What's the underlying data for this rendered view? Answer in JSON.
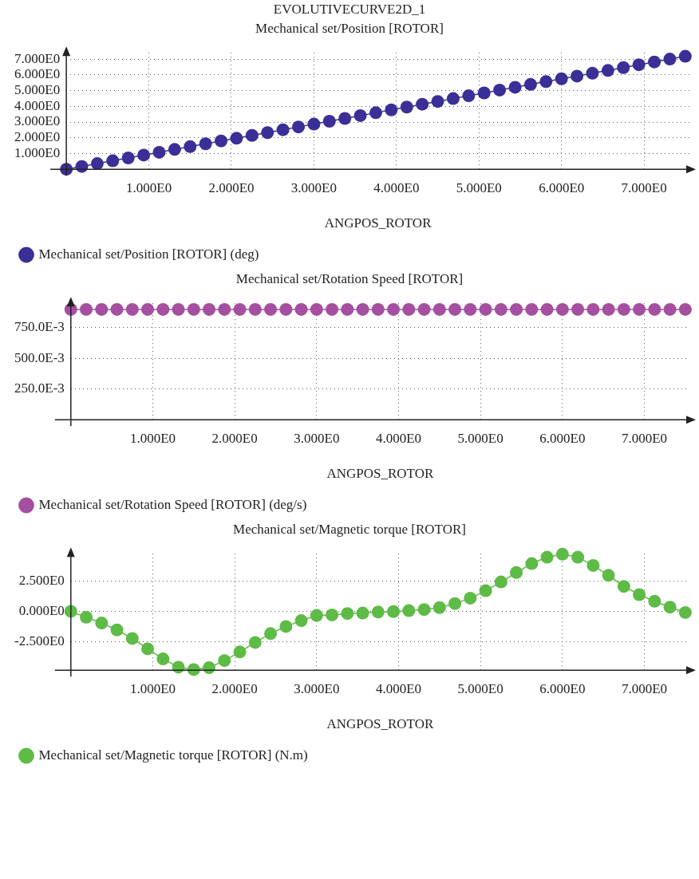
{
  "chart_data": [
    {
      "type": "line",
      "title": "EVOLUTIVECURVE2D_1",
      "subtitle": "Mechanical set/Position [ROTOR]",
      "xlabel": "ANGPOS_ROTOR",
      "x": [
        0,
        0.1875,
        0.375,
        0.5625,
        0.75,
        0.9375,
        1.125,
        1.3125,
        1.5,
        1.6875,
        1.875,
        2.0625,
        2.25,
        2.4375,
        2.625,
        2.8125,
        3,
        3.1875,
        3.375,
        3.5625,
        3.75,
        3.9375,
        4.125,
        4.3125,
        4.5,
        4.6875,
        4.875,
        5.0625,
        5.25,
        5.4375,
        5.625,
        5.8125,
        6,
        6.1875,
        6.375,
        6.5625,
        6.75,
        6.9375,
        7.125,
        7.3125,
        7.5
      ],
      "series": [
        {
          "name": "Mechanical set/Position [ROTOR] (deg)",
          "color": "#3a2f96",
          "values": [
            0,
            0.18,
            0.36,
            0.54,
            0.72,
            0.9,
            1.08,
            1.26,
            1.44,
            1.62,
            1.8,
            1.97,
            2.15,
            2.33,
            2.51,
            2.69,
            2.87,
            3.05,
            3.23,
            3.41,
            3.59,
            3.77,
            3.95,
            4.13,
            4.31,
            4.49,
            4.67,
            4.85,
            5.03,
            5.21,
            5.39,
            5.57,
            5.75,
            5.92,
            6.1,
            6.28,
            6.46,
            6.64,
            6.82,
            7,
            7.18
          ]
        }
      ],
      "xlim": [
        0,
        7.55
      ],
      "xticks": [
        {
          "value": 1,
          "label": "1.000E0"
        },
        {
          "value": 2,
          "label": "2.000E0"
        },
        {
          "value": 3,
          "label": "3.000E0"
        },
        {
          "value": 4,
          "label": "4.000E0"
        },
        {
          "value": 5,
          "label": "5.000E0"
        },
        {
          "value": 6,
          "label": "6.000E0"
        },
        {
          "value": 7,
          "label": "7.000E0"
        }
      ],
      "ylim": [
        0,
        7.4
      ],
      "yticks": [
        {
          "value": 1,
          "label": "1.000E0"
        },
        {
          "value": 2,
          "label": "2.000E0"
        },
        {
          "value": 3,
          "label": "3.000E0"
        },
        {
          "value": 4,
          "label": "4.000E0"
        },
        {
          "value": 5,
          "label": "5.000E0"
        },
        {
          "value": 6,
          "label": "6.000E0"
        },
        {
          "value": 7,
          "label": "7.000E0"
        }
      ],
      "grid": true,
      "legend": "bottom left",
      "marker": "circle",
      "line_style": "solid"
    },
    {
      "type": "line",
      "title": "Mechanical set/Rotation Speed [ROTOR]",
      "xlabel": "ANGPOS_ROTOR",
      "x": [
        0,
        0.1875,
        0.375,
        0.5625,
        0.75,
        0.9375,
        1.125,
        1.3125,
        1.5,
        1.6875,
        1.875,
        2.0625,
        2.25,
        2.4375,
        2.625,
        2.8125,
        3,
        3.1875,
        3.375,
        3.5625,
        3.75,
        3.9375,
        4.125,
        4.3125,
        4.5,
        4.6875,
        4.875,
        5.0625,
        5.25,
        5.4375,
        5.625,
        5.8125,
        6,
        6.1875,
        6.375,
        6.5625,
        6.75,
        6.9375,
        7.125,
        7.3125,
        7.5
      ],
      "series": [
        {
          "name": "Mechanical set/Rotation Speed [ROTOR] (deg/s)",
          "color": "#a54fa0",
          "values": [
            0.9,
            0.9,
            0.9,
            0.9,
            0.9,
            0.9,
            0.9,
            0.9,
            0.9,
            0.9,
            0.9,
            0.9,
            0.9,
            0.9,
            0.9,
            0.9,
            0.9,
            0.9,
            0.9,
            0.9,
            0.9,
            0.9,
            0.9,
            0.9,
            0.9,
            0.9,
            0.9,
            0.9,
            0.9,
            0.9,
            0.9,
            0.9,
            0.9,
            0.9,
            0.9,
            0.9,
            0.9,
            0.9,
            0.9,
            0.9,
            0.9
          ]
        }
      ],
      "xlim": [
        0,
        7.55
      ],
      "xticks": [
        {
          "value": 1,
          "label": "1.000E0"
        },
        {
          "value": 2,
          "label": "2.000E0"
        },
        {
          "value": 3,
          "label": "3.000E0"
        },
        {
          "value": 4,
          "label": "4.000E0"
        },
        {
          "value": 5,
          "label": "5.000E0"
        },
        {
          "value": 6,
          "label": "6.000E0"
        },
        {
          "value": 7,
          "label": "7.000E0"
        }
      ],
      "ylim": [
        0,
        0.95
      ],
      "yticks": [
        {
          "value": 0.25,
          "label": "250.0E-3"
        },
        {
          "value": 0.5,
          "label": "500.0E-3"
        },
        {
          "value": 0.75,
          "label": "750.0E-3"
        }
      ],
      "grid": true,
      "legend": "bottom left",
      "marker": "circle",
      "line_style": "solid"
    },
    {
      "type": "line",
      "title": "Mechanical set/Magnetic torque [ROTOR]",
      "xlabel": "ANGPOS_ROTOR",
      "x": [
        0,
        0.1875,
        0.375,
        0.5625,
        0.75,
        0.9375,
        1.125,
        1.3125,
        1.5,
        1.6875,
        1.875,
        2.0625,
        2.25,
        2.4375,
        2.625,
        2.8125,
        3,
        3.1875,
        3.375,
        3.5625,
        3.75,
        3.9375,
        4.125,
        4.3125,
        4.5,
        4.6875,
        4.875,
        5.0625,
        5.25,
        5.4375,
        5.625,
        5.8125,
        6,
        6.1875,
        6.375,
        6.5625,
        6.75,
        6.9375,
        7.125,
        7.3125,
        7.5
      ],
      "series": [
        {
          "name": "Mechanical set/Magnetic torque [ROTOR] (N.m)",
          "color": "#5dbb46",
          "values": [
            0,
            -0.49,
            -0.97,
            -1.55,
            -2.26,
            -3.12,
            -3.96,
            -4.65,
            -4.85,
            -4.69,
            -4.1,
            -3.38,
            -2.59,
            -1.85,
            -1.26,
            -0.77,
            -0.34,
            -0.3,
            -0.18,
            -0.14,
            -0.06,
            -0.02,
            0.06,
            0.15,
            0.31,
            0.65,
            1.1,
            1.72,
            2.45,
            3.23,
            3.98,
            4.51,
            4.76,
            4.51,
            3.82,
            3.0,
            2.08,
            1.39,
            0.84,
            0.35,
            -0.1
          ]
        }
      ],
      "xlim": [
        0,
        7.55
      ],
      "xticks": [
        {
          "value": 1,
          "label": "1.000E0"
        },
        {
          "value": 2,
          "label": "2.000E0"
        },
        {
          "value": 3,
          "label": "3.000E0"
        },
        {
          "value": 4,
          "label": "4.000E0"
        },
        {
          "value": 5,
          "label": "5.000E0"
        },
        {
          "value": 6,
          "label": "6.000E0"
        },
        {
          "value": 7,
          "label": "7.000E0"
        }
      ],
      "ylim": [
        -4.9,
        4.8
      ],
      "yticks": [
        {
          "value": -2.5,
          "label": "-2.500E0"
        },
        {
          "value": 0,
          "label": "0.000E0"
        },
        {
          "value": 2.5,
          "label": "2.500E0"
        }
      ],
      "grid": true,
      "legend": "bottom left",
      "marker": "circle",
      "line_style": "solid"
    }
  ]
}
